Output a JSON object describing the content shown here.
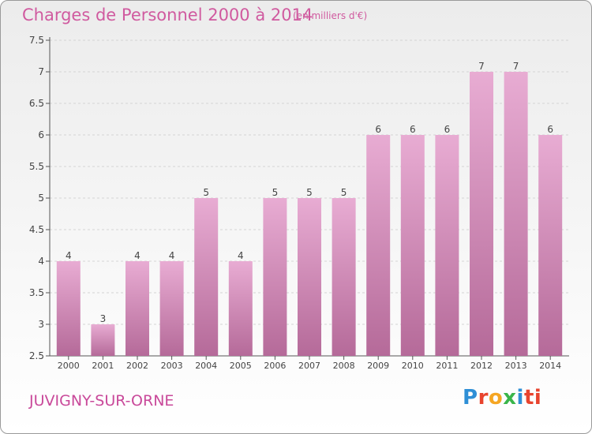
{
  "title": "Charges de Personnel 2000 à 2014",
  "subtitle": "(en milliers d'€)",
  "town": "JUVIGNY-SUR-ORNE",
  "logo": [
    "P",
    "r",
    "o",
    "x",
    "i",
    "ti"
  ],
  "colors": {
    "accent": "#d05a9f",
    "bar_top": "#e6a8d0",
    "bar_bottom": "#b86c9c"
  },
  "chart_data": {
    "type": "bar",
    "categories": [
      "2000",
      "2001",
      "2002",
      "2003",
      "2004",
      "2005",
      "2006",
      "2007",
      "2008",
      "2009",
      "2010",
      "2011",
      "2012",
      "2013",
      "2014"
    ],
    "values": [
      4,
      3,
      4,
      4,
      5,
      4,
      5,
      5,
      5,
      6,
      6,
      6,
      7,
      7,
      6
    ],
    "ylim": [
      2.5,
      7.5
    ],
    "yticks": [
      "2.5",
      "3",
      "3.5",
      "4",
      "4.5",
      "5",
      "5.5",
      "6",
      "6.5",
      "7",
      "7.5"
    ],
    "grid": true
  }
}
